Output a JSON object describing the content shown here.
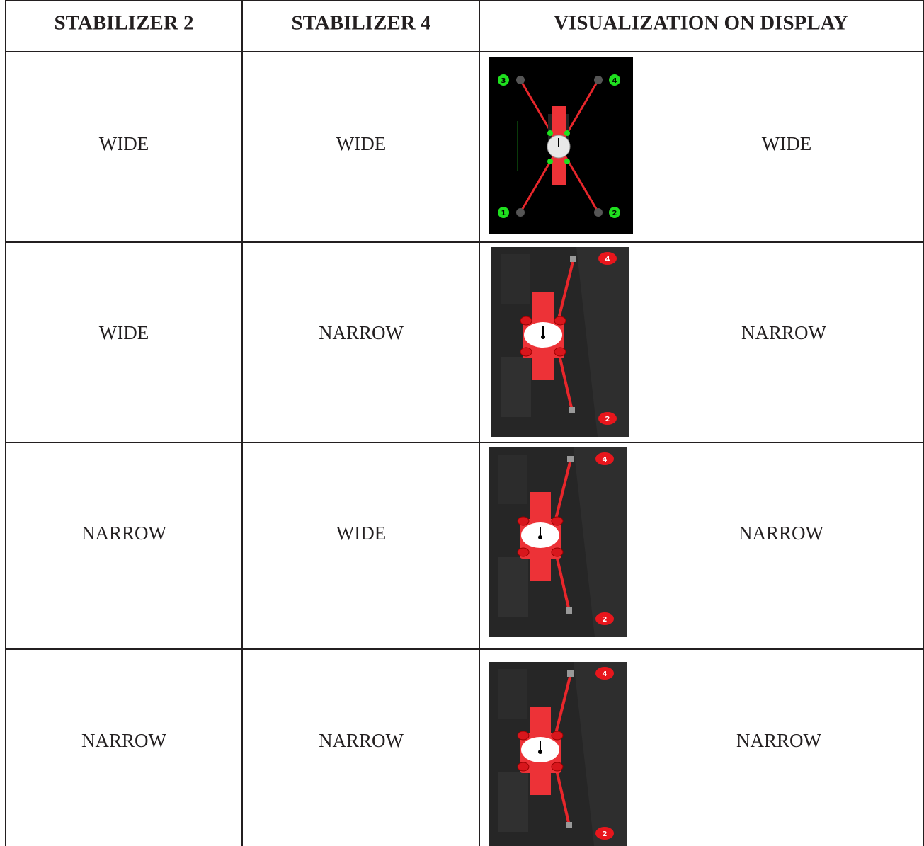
{
  "header": {
    "columns": [
      "STABILIZER 2",
      "STABILIZER 4",
      "VISUALIZATION ON DISPLAY"
    ]
  },
  "table": {
    "rows": [
      {
        "stabilizer_2": "WIDE",
        "stabilizer_4": "WIDE",
        "display": "WIDE",
        "badges": [
          "3",
          "4",
          "1",
          "2"
        ]
      },
      {
        "stabilizer_2": "WIDE",
        "stabilizer_4": "NARROW",
        "display": "NARROW",
        "badges": [
          "4",
          "2"
        ]
      },
      {
        "stabilizer_2": "NARROW",
        "stabilizer_4": "WIDE",
        "display": "NARROW",
        "badges": [
          "4",
          "2"
        ]
      },
      {
        "stabilizer_2": "NARROW",
        "stabilizer_4": "NARROW",
        "display": "NARROW",
        "badges": [
          "4",
          "2"
        ]
      }
    ]
  }
}
